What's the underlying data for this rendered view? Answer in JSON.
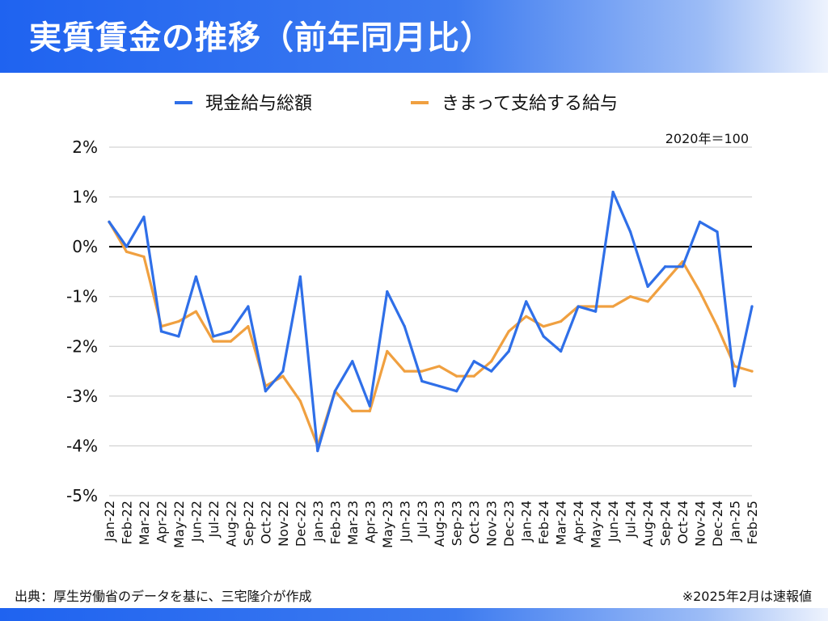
{
  "title": "実質賃金の推移（前年同月比）",
  "source": "出典：厚生労働省のデータを基に、三宅隆介が作成",
  "footnote": "※2025年2月は速報値",
  "chart_data": {
    "type": "line",
    "annotation": "2020年＝100",
    "categories": [
      "Jan-22",
      "Feb-22",
      "Mar-22",
      "Apr-22",
      "May-22",
      "Jun-22",
      "Jul-22",
      "Aug-22",
      "Sep-22",
      "Oct-22",
      "Nov-22",
      "Dec-22",
      "Jan-23",
      "Feb-23",
      "Mar-23",
      "Apr-23",
      "May-23",
      "Jun-23",
      "Jul-23",
      "Aug-23",
      "Sep-23",
      "Oct-23",
      "Nov-23",
      "Dec-23",
      "Jan-24",
      "Feb-24",
      "Mar-24",
      "Apr-24",
      "May-24",
      "Jun-24",
      "Jul-24",
      "Aug-24",
      "Sep-24",
      "Oct-24",
      "Nov-24",
      "Dec-24",
      "Jan-25",
      "Feb-25"
    ],
    "yticks": [
      "2%",
      "1%",
      "0%",
      "-1%",
      "-2%",
      "-3%",
      "-4%",
      "-5%"
    ],
    "ylim": [
      -5,
      2
    ],
    "grid": true,
    "legend_position": "top",
    "series": [
      {
        "name": "現金給与総額",
        "color": "#2f6fe8",
        "values": [
          0.5,
          0.0,
          0.6,
          -1.7,
          -1.8,
          -0.6,
          -1.8,
          -1.7,
          -1.2,
          -2.9,
          -2.5,
          -0.6,
          -4.1,
          -2.9,
          -2.3,
          -3.2,
          -0.9,
          -1.6,
          -2.7,
          -2.8,
          -2.9,
          -2.3,
          -2.5,
          -2.1,
          -1.1,
          -1.8,
          -2.1,
          -1.2,
          -1.3,
          1.1,
          0.3,
          -0.8,
          -0.4,
          -0.4,
          0.5,
          0.3,
          -2.8,
          -1.2
        ]
      },
      {
        "name": "きまって支給する給与",
        "color": "#f0a040",
        "values": [
          0.5,
          -0.1,
          -0.2,
          -1.6,
          -1.5,
          -1.3,
          -1.9,
          -1.9,
          -1.6,
          -2.8,
          -2.6,
          -3.1,
          -4.0,
          -2.9,
          -3.3,
          -3.3,
          -2.1,
          -2.5,
          -2.5,
          -2.4,
          -2.6,
          -2.6,
          -2.3,
          -1.7,
          -1.4,
          -1.6,
          -1.5,
          -1.2,
          -1.2,
          -1.2,
          -1.0,
          -1.1,
          -0.7,
          -0.3,
          -0.9,
          -1.6,
          -2.4,
          -2.5
        ]
      }
    ]
  }
}
